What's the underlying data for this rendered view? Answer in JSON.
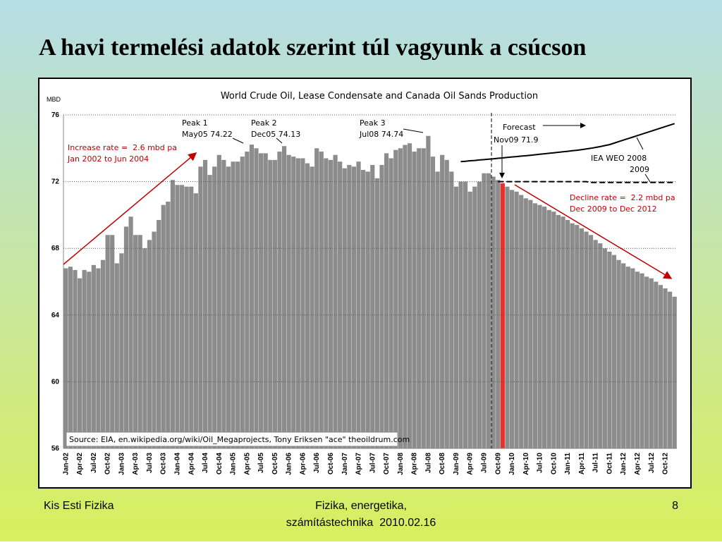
{
  "slide": {
    "title": "A havi termelési adatok szerint túl vagyunk a csúcson",
    "footer_left": "Kis Esti Fizika",
    "footer_center": [
      "Fizika, energetika,",
      "számítástechnika  2010.02.16"
    ],
    "page_number": "8"
  },
  "chart_data": {
    "type": "bar",
    "title": "World Crude Oil, Lease Condensate and Canada Oil Sands Production",
    "y_label": "MBD",
    "categories": [
      "Jan-02",
      null,
      null,
      "Apr-02",
      null,
      null,
      "Jul-02",
      null,
      null,
      "Oct-02",
      null,
      null,
      "Jan-03",
      null,
      null,
      "Apr-03",
      null,
      null,
      "Jul-03",
      null,
      null,
      "Oct-03",
      null,
      null,
      "Jan-04",
      null,
      null,
      "Apr-04",
      null,
      null,
      "Jul-04",
      null,
      null,
      "Oct-04",
      null,
      null,
      "Jan-05",
      null,
      null,
      "Apr-05",
      null,
      null,
      "Jul-05",
      null,
      null,
      "Oct-05",
      null,
      null,
      "Jan-06",
      null,
      null,
      "Apr-06",
      null,
      null,
      "Jul-06",
      null,
      null,
      "Oct-06",
      null,
      null,
      "Jan-07",
      null,
      null,
      "Apr-07",
      null,
      null,
      "Jul-07",
      null,
      null,
      "Oct-07",
      null,
      null,
      "Jan-08",
      null,
      null,
      "Apr-08",
      null,
      null,
      "Jul-08",
      null,
      null,
      "Oct-08",
      null,
      null,
      "Jan-09",
      null,
      null,
      "Apr-09",
      null,
      null,
      "Jul-09",
      null,
      null,
      "Oct-09",
      null,
      null,
      "Jan-10",
      null,
      null,
      "Apr-10",
      null,
      null,
      "Jul-10",
      null,
      null,
      "Oct-10",
      null,
      null,
      "Jan-11",
      null,
      null,
      "Apr-11",
      null,
      null,
      "Jul-11",
      null,
      null,
      "Oct-11",
      null,
      null,
      "Jan-12",
      null,
      null,
      "Apr-12",
      null,
      null,
      "Jul-12",
      null,
      null,
      "Oct-12",
      null,
      null
    ],
    "values": [
      66.8,
      66.9,
      66.7,
      66.2,
      66.7,
      66.6,
      67.0,
      66.8,
      67.3,
      68.8,
      68.8,
      67.1,
      67.7,
      69.3,
      69.9,
      68.8,
      68.8,
      68.0,
      68.5,
      69.0,
      69.7,
      70.6,
      70.8,
      72.1,
      71.8,
      71.8,
      71.7,
      71.7,
      71.3,
      72.9,
      73.3,
      72.4,
      72.9,
      73.6,
      73.3,
      72.9,
      73.2,
      73.2,
      73.5,
      73.8,
      74.22,
      74.0,
      73.7,
      73.7,
      73.3,
      73.3,
      73.8,
      74.13,
      73.6,
      73.5,
      73.4,
      73.4,
      73.1,
      72.9,
      74.0,
      73.8,
      73.4,
      73.3,
      73.6,
      73.2,
      72.8,
      73.0,
      72.9,
      73.2,
      72.7,
      72.6,
      73.0,
      72.2,
      73.0,
      73.7,
      73.4,
      73.9,
      74.0,
      74.2,
      74.3,
      73.8,
      74.0,
      74.0,
      74.74,
      73.5,
      72.6,
      73.6,
      73.3,
      72.6,
      71.7,
      72.0,
      72.0,
      71.4,
      71.7,
      72.0,
      72.5,
      72.5,
      72.3,
      72.1,
      71.9,
      71.7,
      71.5,
      71.4,
      71.2,
      71.0,
      70.9,
      70.7,
      70.6,
      70.5,
      70.3,
      70.2,
      70.0,
      69.9,
      69.7,
      69.5,
      69.4,
      69.2,
      69.0,
      68.8,
      68.5,
      68.3,
      68.0,
      67.8,
      67.6,
      67.3,
      67.1,
      66.9,
      66.8,
      66.6,
      66.5,
      66.3,
      66.2,
      66.0,
      65.8,
      65.6,
      65.4,
      65.1
    ],
    "color": "#8c8c8c",
    "highlight_index": 94,
    "highlight_color": "#e8312f",
    "lines": [
      {
        "name": "IEA WEO 2008",
        "color": "#000000",
        "dashed": false,
        "values": [
          null,
          null,
          null,
          null,
          null,
          null,
          null,
          null,
          null,
          null,
          null,
          null,
          null,
          null,
          null,
          null,
          null,
          null,
          null,
          null,
          null,
          null,
          null,
          null,
          null,
          null,
          null,
          null,
          null,
          null,
          null,
          null,
          null,
          null,
          null,
          null,
          null,
          null,
          null,
          null,
          null,
          null,
          null,
          null,
          null,
          null,
          null,
          null,
          null,
          null,
          null,
          null,
          null,
          null,
          null,
          null,
          null,
          null,
          null,
          null,
          null,
          null,
          null,
          null,
          null,
          null,
          null,
          null,
          null,
          null,
          null,
          null,
          null,
          null,
          null,
          null,
          null,
          null,
          null,
          null,
          null,
          null,
          null,
          null,
          null,
          73.2,
          73.22,
          73.25,
          73.27,
          73.3,
          73.32,
          73.35,
          73.37,
          73.4,
          73.42,
          73.45,
          73.48,
          73.5,
          73.53,
          73.55,
          73.58,
          73.61,
          73.64,
          73.67,
          73.7,
          73.73,
          73.76,
          73.79,
          73.82,
          73.85,
          73.88,
          73.92,
          73.96,
          74.0,
          74.05,
          74.1,
          74.16,
          74.22,
          74.31,
          74.4,
          74.49,
          74.58,
          74.67,
          74.76,
          74.85,
          74.94,
          75.03,
          75.12,
          75.21,
          75.3,
          75.39,
          75.48
        ]
      },
      {
        "name": "2009",
        "color": "#000000",
        "dashed": true,
        "values": [
          null,
          null,
          null,
          null,
          null,
          null,
          null,
          null,
          null,
          null,
          null,
          null,
          null,
          null,
          null,
          null,
          null,
          null,
          null,
          null,
          null,
          null,
          null,
          null,
          null,
          null,
          null,
          null,
          null,
          null,
          null,
          null,
          null,
          null,
          null,
          null,
          null,
          null,
          null,
          null,
          null,
          null,
          null,
          null,
          null,
          null,
          null,
          null,
          null,
          null,
          null,
          null,
          null,
          null,
          null,
          null,
          null,
          null,
          null,
          null,
          null,
          null,
          null,
          null,
          null,
          null,
          null,
          null,
          null,
          null,
          null,
          null,
          null,
          null,
          null,
          null,
          null,
          null,
          null,
          null,
          null,
          null,
          null,
          null,
          null,
          null,
          null,
          null,
          null,
          null,
          null,
          null,
          null,
          72.0,
          72.0,
          72.0,
          72.0,
          72.0,
          72.0,
          72.0,
          72.0,
          72.0,
          72.0,
          72.0,
          72.0,
          72.0,
          72.0,
          72.0,
          72.0,
          72.0,
          72.0,
          72.0,
          72.0,
          71.95,
          71.95,
          71.95,
          71.95,
          71.95,
          71.95,
          71.95,
          71.95,
          71.95,
          71.95,
          71.95,
          71.95,
          71.95,
          71.95,
          71.95,
          71.95,
          71.95,
          71.95,
          71.95
        ]
      }
    ],
    "ylim": [
      56,
      76
    ],
    "yticks": [
      56,
      60,
      64,
      68,
      72,
      76
    ],
    "grid": true,
    "annotations": [
      "Peak 1",
      "May05 74.22",
      "Peak 2",
      "Dec05 74.13",
      "Peak 3",
      "Jul08 74.74",
      "Increase rate =  2.6 mbd pa",
      "Jan 2002 to Jun 2004",
      "Forecast",
      "Nov09 71.9",
      "Decline rate =  2.2 mbd pa",
      "Dec 2009 to Dec 2012",
      "Source: EIA, en.wikipedia.org/wiki/Oil_Megaprojects, Tony Eriksen \"ace\" theoildrum.com"
    ]
  }
}
